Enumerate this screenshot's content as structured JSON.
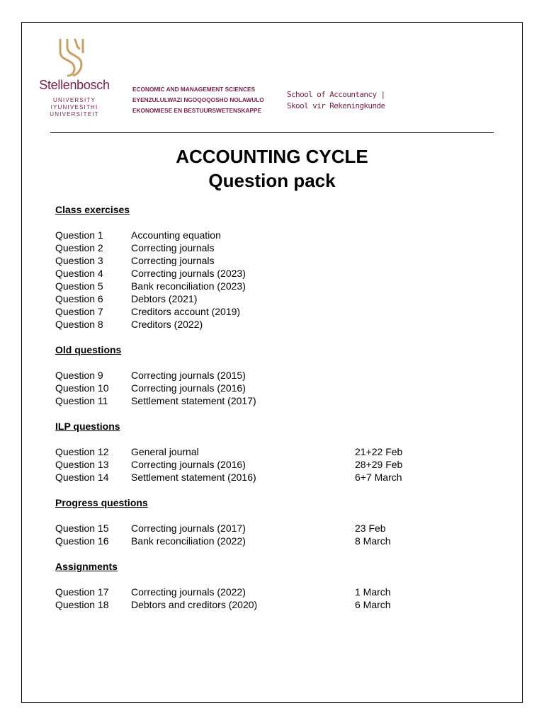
{
  "header": {
    "university_name": "Stellenbosch",
    "university_sub": [
      "UNIVERSITY",
      "IYUNIVESITHI",
      "UNIVERSITEIT"
    ],
    "faculty": [
      "ECONOMIC AND MANAGEMENT SCIENCES",
      "EYENZULULWAZI NGOQOQOSHO NOLAWULO",
      "EKONOMIESE EN BESTUURSWETENSKAPPE"
    ],
    "school": [
      "School of Accountancy |",
      "Skool vir Rekeningkunde"
    ],
    "brand_color": "#7a2048",
    "crest_color": "#c9a063"
  },
  "title": "ACCOUNTING CYCLE",
  "subtitle": "Question pack",
  "sections": [
    {
      "heading": "Class exercises",
      "items": [
        {
          "q": "Question 1",
          "d": "Accounting equation",
          "date": ""
        },
        {
          "q": "Question 2",
          "d": "Correcting journals",
          "date": ""
        },
        {
          "q": "Question 3",
          "d": "Correcting journals",
          "date": ""
        },
        {
          "q": "Question 4",
          "d": "Correcting journals (2023)",
          "date": ""
        },
        {
          "q": "Question 5",
          "d": "Bank reconciliation (2023)",
          "date": ""
        },
        {
          "q": "Question 6",
          "d": "Debtors (2021)",
          "date": ""
        },
        {
          "q": "Question 7",
          "d": "Creditors account (2019)",
          "date": ""
        },
        {
          "q": "Question 8",
          "d": "Creditors (2022)",
          "date": ""
        }
      ]
    },
    {
      "heading": "Old questions",
      "items": [
        {
          "q": "Question 9",
          "d": "Correcting journals (2015)",
          "date": ""
        },
        {
          "q": "Question 10",
          "d": "Correcting journals (2016)",
          "date": ""
        },
        {
          "q": "Question 11",
          "d": "Settlement statement (2017)",
          "date": ""
        }
      ]
    },
    {
      "heading": "ILP questions",
      "items": [
        {
          "q": "Question 12",
          "d": "General journal",
          "date": "21+22 Feb"
        },
        {
          "q": "Question 13",
          "d": "Correcting journals (2016)",
          "date": "28+29 Feb"
        },
        {
          "q": "Question 14",
          "d": "Settlement statement (2016)",
          "date": "6+7 March"
        }
      ]
    },
    {
      "heading": "Progress questions",
      "items": [
        {
          "q": "Question 15",
          "d": "Correcting journals (2017)",
          "date": "23 Feb"
        },
        {
          "q": "Question 16",
          "d": "Bank reconciliation (2022)",
          "date": "8 March"
        }
      ]
    },
    {
      "heading": "Assignments",
      "items": [
        {
          "q": "Question 17",
          "d": "Correcting journals (2022)",
          "date": "1 March"
        },
        {
          "q": "Question 18",
          "d": "Debtors and creditors (2020)",
          "date": "6 March"
        }
      ]
    }
  ]
}
